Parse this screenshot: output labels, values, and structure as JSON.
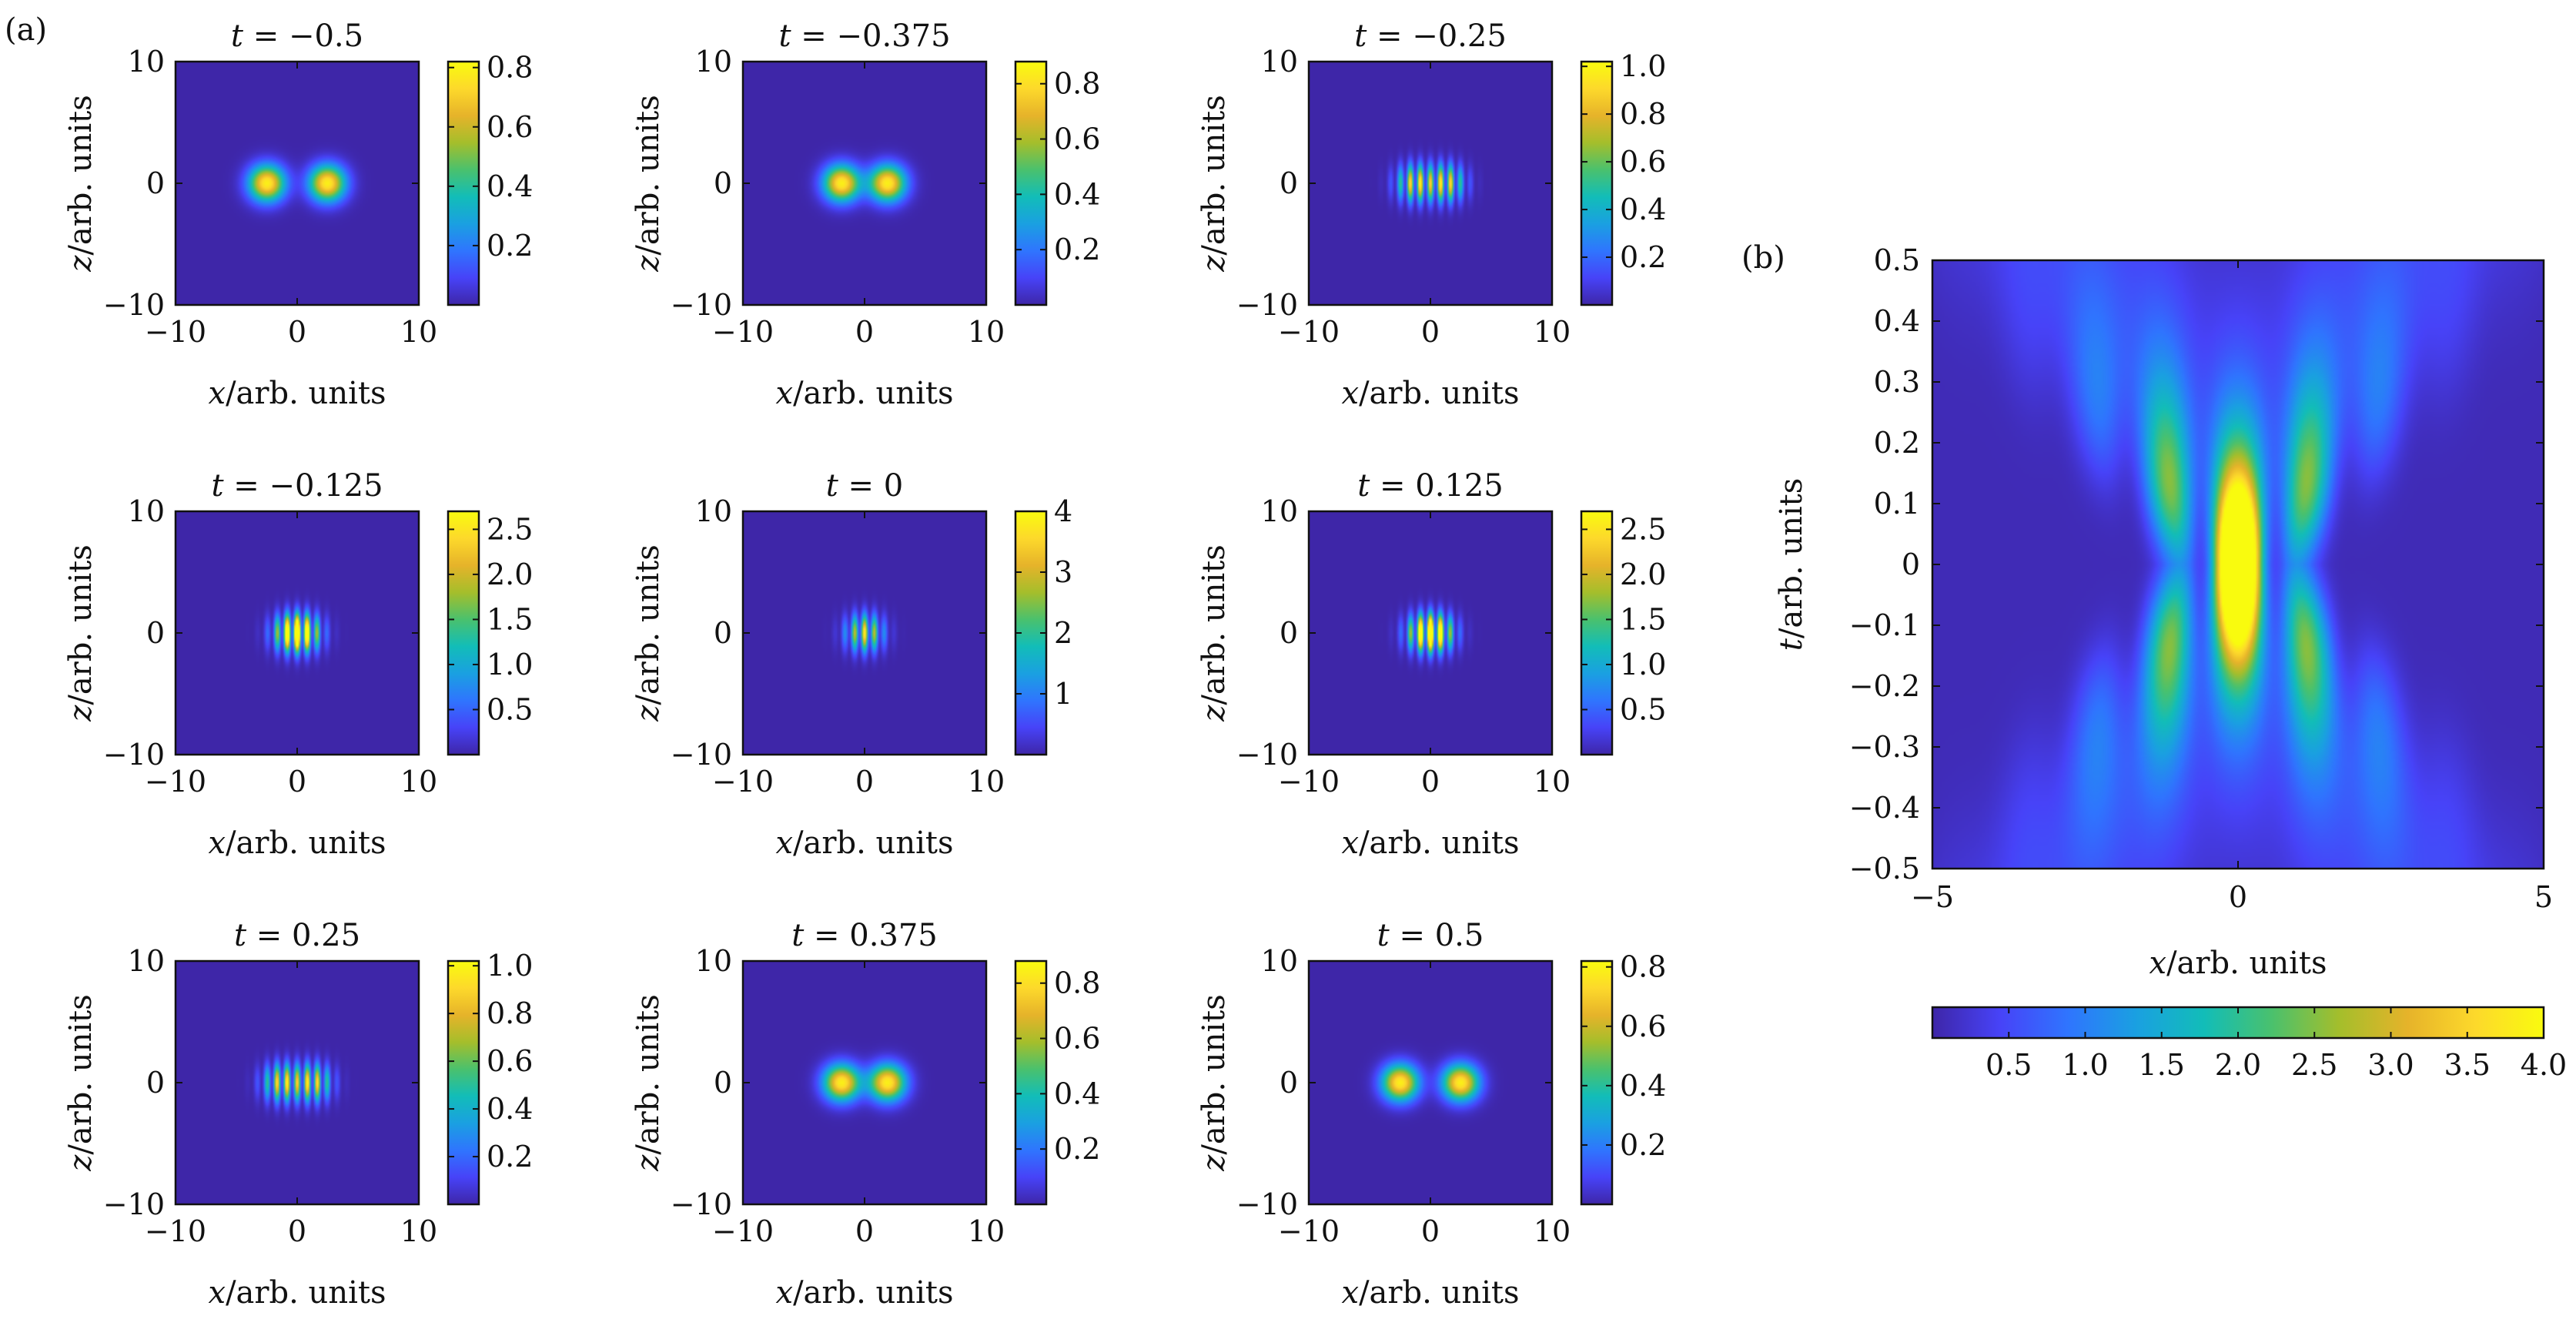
{
  "figure": {
    "panel_a_label": "(a)",
    "panel_b_label": "(b)"
  },
  "colormap": [
    "#3e26a8",
    "#4743f8",
    "#2f75fe",
    "#1aa0e1",
    "#12bdb8",
    "#4ac16d",
    "#a5be2b",
    "#e6b32a",
    "#fdd92b",
    "#f9fb0e"
  ],
  "chart_data": [
    {
      "type": "heatmap",
      "title": "t = −0.5",
      "t": -0.5,
      "xlabel": "x/arb. units",
      "ylabel": "z/arb. units",
      "xlim": [
        -10,
        10
      ],
      "ylim": [
        -10,
        10
      ],
      "xticks": [
        "−10",
        "0",
        "10"
      ],
      "yticks": [
        "10",
        "0",
        "−10"
      ],
      "peaks_x": [
        -2.5,
        2.5
      ],
      "fringes": false,
      "colorbar": {
        "max": 0.82,
        "ticks": [
          "0.2",
          "0.4",
          "0.6",
          "0.8"
        ],
        "tick_values": [
          0.2,
          0.4,
          0.6,
          0.8
        ]
      }
    },
    {
      "type": "heatmap",
      "title": "t = −0.375",
      "t": -0.375,
      "xlabel": "x/arb. units",
      "ylabel": "z/arb. units",
      "xlim": [
        -10,
        10
      ],
      "ylim": [
        -10,
        10
      ],
      "xticks": [
        "−10",
        "0",
        "10"
      ],
      "yticks": [
        "10",
        "0",
        "−10"
      ],
      "peaks_x": [
        -1.9,
        1.9
      ],
      "fringes": false,
      "colorbar": {
        "max": 0.88,
        "ticks": [
          "0.2",
          "0.4",
          "0.6",
          "0.8"
        ],
        "tick_values": [
          0.2,
          0.4,
          0.6,
          0.8
        ]
      }
    },
    {
      "type": "heatmap",
      "title": "t = −0.25",
      "t": -0.25,
      "xlabel": "x/arb. units",
      "ylabel": "z/arb. units",
      "xlim": [
        -10,
        10
      ],
      "ylim": [
        -10,
        10
      ],
      "xticks": [
        "−10",
        "0",
        "10"
      ],
      "yticks": [
        "10",
        "0",
        "−10"
      ],
      "peaks_x": [
        -1.3,
        1.3
      ],
      "fringes": true,
      "colorbar": {
        "max": 1.02,
        "ticks": [
          "0.2",
          "0.4",
          "0.6",
          "0.8",
          "1.0"
        ],
        "tick_values": [
          0.2,
          0.4,
          0.6,
          0.8,
          1.0
        ]
      }
    },
    {
      "type": "heatmap",
      "title": "t = −0.125",
      "t": -0.125,
      "xlabel": "x/arb. units",
      "ylabel": "z/arb. units",
      "xlim": [
        -10,
        10
      ],
      "ylim": [
        -10,
        10
      ],
      "xticks": [
        "−10",
        "0",
        "10"
      ],
      "yticks": [
        "10",
        "0",
        "−10"
      ],
      "peaks_x": [
        -0.6,
        0.6
      ],
      "fringes": true,
      "colorbar": {
        "max": 2.7,
        "ticks": [
          "0.5",
          "1.0",
          "1.5",
          "2.0",
          "2.5"
        ],
        "tick_values": [
          0.5,
          1.0,
          1.5,
          2.0,
          2.5
        ]
      }
    },
    {
      "type": "heatmap",
      "title": "t = 0",
      "t": 0,
      "xlabel": "x/arb. units",
      "ylabel": "z/arb. units",
      "xlim": [
        -10,
        10
      ],
      "ylim": [
        -10,
        10
      ],
      "xticks": [
        "−10",
        "0",
        "10"
      ],
      "yticks": [
        "10",
        "0",
        "−10"
      ],
      "peaks_x": [
        0
      ],
      "fringes": true,
      "colorbar": {
        "max": 4.0,
        "ticks": [
          "1",
          "2",
          "3",
          "4"
        ],
        "tick_values": [
          1,
          2,
          3,
          4
        ]
      }
    },
    {
      "type": "heatmap",
      "title": "t = 0.125",
      "t": 0.125,
      "xlabel": "x/arb. units",
      "ylabel": "z/arb. units",
      "xlim": [
        -10,
        10
      ],
      "ylim": [
        -10,
        10
      ],
      "xticks": [
        "−10",
        "0",
        "10"
      ],
      "yticks": [
        "10",
        "0",
        "−10"
      ],
      "peaks_x": [
        -0.6,
        0.6
      ],
      "fringes": true,
      "colorbar": {
        "max": 2.7,
        "ticks": [
          "0.5",
          "1.0",
          "1.5",
          "2.0",
          "2.5"
        ],
        "tick_values": [
          0.5,
          1.0,
          1.5,
          2.0,
          2.5
        ]
      }
    },
    {
      "type": "heatmap",
      "title": "t = 0.25",
      "t": 0.25,
      "xlabel": "x/arb. units",
      "ylabel": "z/arb. units",
      "xlim": [
        -10,
        10
      ],
      "ylim": [
        -10,
        10
      ],
      "xticks": [
        "−10",
        "0",
        "10"
      ],
      "yticks": [
        "10",
        "0",
        "−10"
      ],
      "peaks_x": [
        -1.3,
        1.3
      ],
      "fringes": true,
      "colorbar": {
        "max": 1.02,
        "ticks": [
          "0.2",
          "0.4",
          "0.6",
          "0.8",
          "1.0"
        ],
        "tick_values": [
          0.2,
          0.4,
          0.6,
          0.8,
          1.0
        ]
      }
    },
    {
      "type": "heatmap",
      "title": "t = 0.375",
      "t": 0.375,
      "xlabel": "x/arb. units",
      "ylabel": "z/arb. units",
      "xlim": [
        -10,
        10
      ],
      "ylim": [
        -10,
        10
      ],
      "xticks": [
        "−10",
        "0",
        "10"
      ],
      "yticks": [
        "10",
        "0",
        "−10"
      ],
      "peaks_x": [
        -1.9,
        1.9
      ],
      "fringes": false,
      "colorbar": {
        "max": 0.88,
        "ticks": [
          "0.2",
          "0.4",
          "0.6",
          "0.8"
        ],
        "tick_values": [
          0.2,
          0.4,
          0.6,
          0.8
        ]
      }
    },
    {
      "type": "heatmap",
      "title": "t = 0.5",
      "t": 0.5,
      "xlabel": "x/arb. units",
      "ylabel": "z/arb. units",
      "xlim": [
        -10,
        10
      ],
      "ylim": [
        -10,
        10
      ],
      "xticks": [
        "−10",
        "0",
        "10"
      ],
      "yticks": [
        "10",
        "0",
        "−10"
      ],
      "peaks_x": [
        -2.5,
        2.5
      ],
      "fringes": false,
      "colorbar": {
        "max": 0.82,
        "ticks": [
          "0.2",
          "0.4",
          "0.6",
          "0.8"
        ],
        "tick_values": [
          0.2,
          0.4,
          0.6,
          0.8
        ]
      }
    },
    {
      "type": "heatmap",
      "panel": "(b)",
      "xlabel": "x/arb. units",
      "ylabel": "t/arb. units",
      "xlim": [
        -5,
        5
      ],
      "ylim": [
        -0.5,
        0.5
      ],
      "xticks": [
        "−5",
        "0",
        "5"
      ],
      "yticks": [
        "0.5",
        "0.4",
        "0.3",
        "0.2",
        "0.1",
        "0",
        "−0.1",
        "−0.2",
        "−0.3",
        "−0.4",
        "−0.5"
      ],
      "colorbar": {
        "orientation": "horizontal",
        "max": 4.0,
        "ticks": [
          "0.5",
          "1.0",
          "1.5",
          "2.0",
          "2.5",
          "3.0",
          "3.5",
          "4.0"
        ],
        "tick_values": [
          0.5,
          1.0,
          1.5,
          2.0,
          2.5,
          3.0,
          3.5,
          4.0
        ]
      }
    }
  ]
}
